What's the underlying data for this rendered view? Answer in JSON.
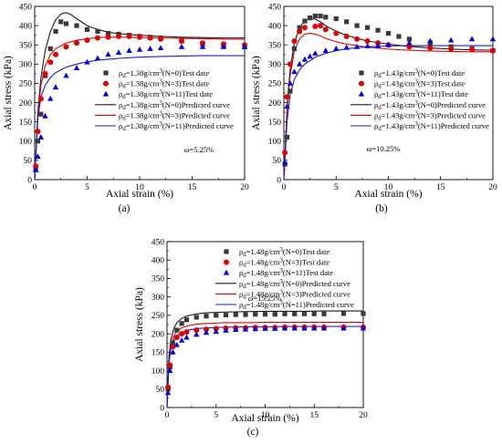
{
  "chart_data": [
    {
      "label": "(a)",
      "type": "scatter",
      "xlabel": "Axial strain (%)",
      "ylabel": "Axial stress (kPa)",
      "xlim": [
        0,
        20
      ],
      "ylim": [
        0,
        450
      ],
      "xticks": [
        "0",
        "5",
        "10",
        "15",
        "20"
      ],
      "yticks": [
        "0",
        "50",
        "100",
        "150",
        "200",
        "250",
        "300",
        "350",
        "400",
        "450"
      ],
      "annotation": "ω=5.25%",
      "legend_position": "center-right",
      "series": [
        {
          "name": "ρd=1.38g/cm3(N=0)Test date",
          "kind": "points",
          "marker": "square",
          "color": "#3a3a3a",
          "x": [
            0.1,
            0.3,
            0.6,
            1.0,
            1.5,
            2.0,
            2.5,
            3.0,
            4.0,
            5.0,
            6.0,
            7.0,
            8.0,
            9.0,
            10.0,
            11.0,
            12.0,
            14.0,
            16.0,
            18.0,
            20.0
          ],
          "y": [
            30,
            100,
            170,
            270,
            340,
            385,
            410,
            405,
            400,
            390,
            385,
            380,
            378,
            375,
            372,
            370,
            368,
            360,
            352,
            348,
            345
          ]
        },
        {
          "name": "ρd=1.38g/cm3(N=3)Test date",
          "kind": "points",
          "marker": "circle",
          "color": "#e00000",
          "x": [
            0.1,
            0.3,
            0.6,
            1.0,
            1.5,
            2.0,
            3.0,
            4.0,
            5.0,
            6.0,
            7.0,
            8.0,
            9.0,
            10.0,
            11.0,
            12.0,
            14.0,
            16.0,
            18.0,
            20.0
          ],
          "y": [
            35,
            125,
            210,
            275,
            305,
            325,
            345,
            355,
            362,
            368,
            370,
            372,
            372,
            370,
            368,
            365,
            360,
            355,
            352,
            350
          ]
        },
        {
          "name": "ρd=1.38g/cm3(N=11)Test date",
          "kind": "points",
          "marker": "triangle",
          "color": "#0000e6",
          "x": [
            0.1,
            0.3,
            0.6,
            1.0,
            1.5,
            2.0,
            3.0,
            4.0,
            5.0,
            6.0,
            7.0,
            8.0,
            9.0,
            10.0,
            11.0,
            12.0,
            14.0,
            16.0,
            18.0,
            20.0
          ],
          "y": [
            25,
            60,
            110,
            165,
            210,
            240,
            270,
            290,
            305,
            315,
            325,
            330,
            335,
            338,
            340,
            342,
            345,
            345,
            345,
            345
          ]
        },
        {
          "name": "ρd=1.38g/cm3(N=0)Predicted curve",
          "kind": "line",
          "color": "#1a1a1a",
          "x": [
            0,
            0.3,
            0.6,
            1.0,
            1.5,
            2.0,
            2.5,
            3.0,
            3.5,
            4.0,
            5.0,
            6.0,
            7.0,
            8.0,
            10.0,
            12.0,
            14.0,
            16.0,
            18.0,
            20.0
          ],
          "y": [
            0,
            175,
            265,
            335,
            385,
            415,
            430,
            434,
            428,
            418,
            400,
            390,
            383,
            379,
            375,
            372,
            370,
            369,
            368,
            368
          ]
        },
        {
          "name": "ρd=1.38g/cm3(N=3)Predicted curve",
          "kind": "line",
          "color": "#e00000",
          "x": [
            0,
            0.3,
            0.6,
            1.0,
            1.5,
            2.0,
            3.0,
            4.0,
            5.0,
            6.0,
            7.0,
            8.0,
            10.0,
            12.0,
            14.0,
            16.0,
            18.0,
            20.0
          ],
          "y": [
            0,
            165,
            245,
            295,
            325,
            340,
            355,
            362,
            366,
            369,
            370,
            370,
            369,
            368,
            367,
            366,
            365,
            365
          ]
        },
        {
          "name": "ρd=1.38g/cm3(N=11)Predicted curve",
          "kind": "line",
          "color": "#1c1ccc",
          "x": [
            0,
            0.3,
            0.6,
            1.0,
            1.5,
            2.0,
            3.0,
            4.0,
            5.0,
            6.0,
            8.0,
            10.0,
            12.0,
            14.0,
            16.0,
            18.0,
            20.0
          ],
          "y": [
            0,
            160,
            215,
            245,
            265,
            278,
            292,
            300,
            306,
            310,
            315,
            318,
            320,
            321,
            322,
            322,
            322
          ]
        }
      ]
    },
    {
      "label": "(b)",
      "type": "scatter",
      "xlabel": "Axial strain (%)",
      "ylabel": "Axial stress (kPa)",
      "xlim": [
        0,
        20
      ],
      "ylim": [
        0,
        450
      ],
      "xticks": [
        "0",
        "5",
        "10",
        "15",
        "20"
      ],
      "yticks": [
        "0",
        "50",
        "100",
        "150",
        "200",
        "250",
        "300",
        "350",
        "400",
        "450"
      ],
      "annotation": "ω=10.25%",
      "legend_position": "center-right",
      "series": [
        {
          "name": "ρd=1.43g/cm3(N=0)Test date",
          "kind": "points",
          "marker": "square",
          "color": "#3a3a3a",
          "x": [
            0.1,
            0.3,
            0.6,
            1.0,
            1.5,
            2.0,
            2.5,
            3.0,
            3.5,
            4.0,
            5.0,
            6.0,
            7.0,
            8.0,
            9.0,
            10.0,
            11.0,
            12.0,
            14.0,
            16.0,
            18.0,
            20.0
          ],
          "y": [
            40,
            110,
            230,
            340,
            395,
            412,
            420,
            425,
            425,
            422,
            418,
            410,
            400,
            395,
            388,
            380,
            372,
            365,
            355,
            345,
            340,
            335
          ]
        },
        {
          "name": "ρd=1.43g/cm3(N=3)Test date",
          "kind": "points",
          "marker": "circle",
          "color": "#e00000",
          "x": [
            0.1,
            0.3,
            0.6,
            1.0,
            1.5,
            2.0,
            3.0,
            3.5,
            4.0,
            5.0,
            6.0,
            7.0,
            8.0,
            9.0,
            10.0,
            12.0,
            14.0,
            16.0,
            18.0,
            20.0
          ],
          "y": [
            70,
            215,
            300,
            360,
            385,
            395,
            398,
            400,
            390,
            380,
            372,
            365,
            360,
            355,
            350,
            345,
            342,
            340,
            338,
            335
          ]
        },
        {
          "name": "ρd=1.43g/cm3(N=11)Test date",
          "kind": "points",
          "marker": "triangle",
          "color": "#0000e6",
          "x": [
            0.1,
            0.3,
            0.6,
            1.0,
            1.5,
            2.0,
            2.5,
            3.0,
            4.0,
            5.0,
            6.0,
            7.0,
            8.0,
            9.0,
            10.0,
            12.0,
            14.0,
            16.0,
            18.0,
            20.0
          ],
          "y": [
            45,
            190,
            250,
            280,
            300,
            312,
            320,
            328,
            335,
            340,
            343,
            345,
            347,
            348,
            350,
            355,
            360,
            362,
            365,
            365
          ]
        },
        {
          "name": "ρd=1.43g/cm3(N=0)Predicted curve",
          "kind": "line",
          "color": "#1a1a1a",
          "x": [
            0,
            0.3,
            0.6,
            1.0,
            1.5,
            2.0,
            2.5,
            3.0,
            3.5,
            4.0,
            5.0,
            6.0,
            7.0,
            8.0,
            10.0,
            12.0,
            14.0,
            16.0,
            18.0,
            20.0
          ],
          "y": [
            0,
            185,
            285,
            355,
            395,
            412,
            418,
            417,
            410,
            400,
            385,
            375,
            367,
            360,
            352,
            346,
            342,
            339,
            337,
            336
          ]
        },
        {
          "name": "ρd=1.43g/cm3(N=3)Predicted curve",
          "kind": "line",
          "color": "#e00000",
          "x": [
            0,
            0.3,
            0.6,
            1.0,
            1.5,
            2.0,
            2.5,
            3.0,
            3.5,
            4.0,
            5.0,
            6.0,
            8.0,
            10.0,
            12.0,
            14.0,
            16.0,
            18.0,
            20.0
          ],
          "y": [
            0,
            175,
            270,
            335,
            365,
            378,
            380,
            378,
            373,
            367,
            358,
            352,
            344,
            339,
            336,
            334,
            333,
            332,
            332
          ]
        },
        {
          "name": "ρd=1.43g/cm3(N=11)Predicted curve",
          "kind": "line",
          "color": "#1c1ccc",
          "x": [
            0,
            0.3,
            0.6,
            1.0,
            1.5,
            2.0,
            3.0,
            4.0,
            5.0,
            6.0,
            8.0,
            10.0,
            12.0,
            14.0,
            16.0,
            18.0,
            20.0
          ],
          "y": [
            0,
            150,
            220,
            260,
            285,
            300,
            318,
            328,
            335,
            340,
            345,
            347,
            348,
            348,
            348,
            348,
            348
          ]
        }
      ]
    },
    {
      "label": "(c)",
      "type": "scatter",
      "xlabel": "Axial strain (%)",
      "ylabel": "Axial stress (kPa)",
      "xlim": [
        0,
        20
      ],
      "ylim": [
        0,
        450
      ],
      "xticks": [
        "0",
        "5",
        "10",
        "15",
        "20"
      ],
      "yticks": [
        "0",
        "50",
        "100",
        "150",
        "200",
        "250",
        "300",
        "350",
        "400",
        "450"
      ],
      "annotation": "ω=15.25%",
      "legend_position": "top",
      "series": [
        {
          "name": "ρd=1.48g/cm3(N=0)Test date",
          "kind": "points",
          "marker": "square",
          "color": "#3a3a3a",
          "x": [
            0.1,
            0.3,
            0.6,
            1.0,
            1.5,
            2.0,
            3.0,
            4.0,
            5.0,
            6.0,
            7.0,
            8.0,
            9.0,
            10.0,
            11.0,
            12.0,
            13.0,
            14.0,
            15.0,
            16.0,
            18.0,
            20.0
          ],
          "y": [
            50,
            110,
            175,
            210,
            228,
            238,
            245,
            248,
            250,
            251,
            252,
            252,
            253,
            253,
            253,
            254,
            254,
            254,
            254,
            254,
            255,
            255
          ]
        },
        {
          "name": "ρd=1.48g/cm3(N=3)Test date",
          "kind": "points",
          "marker": "circle",
          "color": "#e00000",
          "x": [
            0.1,
            0.3,
            0.6,
            1.0,
            1.5,
            2.0,
            3.0,
            4.0,
            5.0,
            6.0,
            7.0,
            8.0,
            9.0,
            10.0,
            11.0,
            12.0,
            13.0,
            14.0,
            15.0,
            16.0,
            18.0,
            20.0
          ],
          "y": [
            55,
            115,
            165,
            190,
            200,
            205,
            210,
            212,
            214,
            215,
            216,
            216,
            217,
            217,
            217,
            218,
            218,
            218,
            218,
            218,
            218,
            218
          ]
        },
        {
          "name": "ρd=1.48g/cm3(N=11)Test date",
          "kind": "points",
          "marker": "triangle",
          "color": "#0000e6",
          "x": [
            0.1,
            0.3,
            0.6,
            1.0,
            1.5,
            2.0,
            3.0,
            4.0,
            5.0,
            6.0,
            7.0,
            8.0,
            9.0,
            10.0,
            11.0,
            12.0,
            13.0,
            14.0,
            15.0,
            16.0,
            18.0,
            20.0
          ],
          "y": [
            40,
            100,
            150,
            170,
            182,
            190,
            198,
            203,
            206,
            209,
            211,
            212,
            213,
            214,
            214,
            215,
            215,
            215,
            215,
            215,
            215,
            215
          ]
        },
        {
          "name": "ρd=1.48g/cm3(N=0)Predicted curve",
          "kind": "line",
          "color": "#1a1a1a",
          "x": [
            0,
            0.2,
            0.4,
            0.7,
            1.0,
            1.5,
            2.0,
            3.0,
            4.0,
            5.0,
            6.0,
            8.0,
            10.0,
            12.0,
            14.0,
            16.0,
            18.0,
            20.0
          ],
          "y": [
            0,
            140,
            185,
            215,
            230,
            242,
            248,
            254,
            257,
            258,
            259,
            260,
            261,
            261,
            261,
            262,
            262,
            262
          ]
        },
        {
          "name": "ρd=1.48g/cm3(N=3)Predicted curve",
          "kind": "line",
          "color": "#e00000",
          "x": [
            0,
            0.2,
            0.4,
            0.7,
            1.0,
            1.5,
            2.0,
            3.0,
            4.0,
            5.0,
            6.0,
            8.0,
            10.0,
            12.0,
            14.0,
            16.0,
            18.0,
            20.0
          ],
          "y": [
            0,
            130,
            170,
            195,
            207,
            216,
            221,
            226,
            228,
            229,
            230,
            230,
            231,
            231,
            231,
            231,
            231,
            231
          ]
        },
        {
          "name": "ρd=1.48g/cm3(N=11)Predicted curve",
          "kind": "line",
          "color": "#1c1ccc",
          "x": [
            0,
            0.2,
            0.4,
            0.7,
            1.0,
            1.5,
            2.0,
            3.0,
            4.0,
            5.0,
            6.0,
            8.0,
            10.0,
            12.0,
            14.0,
            16.0,
            18.0,
            20.0
          ],
          "y": [
            0,
            120,
            160,
            183,
            195,
            204,
            209,
            214,
            216,
            217,
            218,
            219,
            219,
            220,
            220,
            220,
            220,
            220
          ]
        }
      ]
    }
  ]
}
